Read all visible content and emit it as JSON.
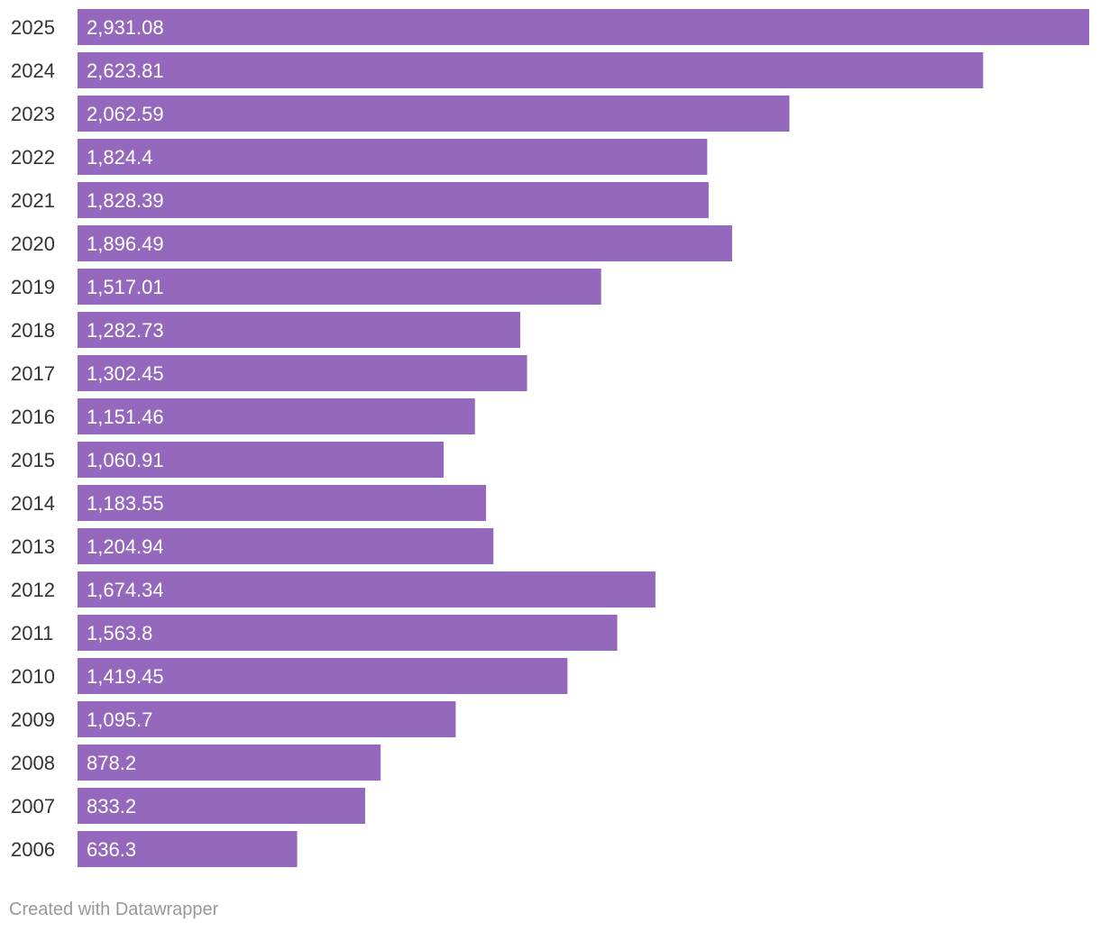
{
  "chart_data": {
    "type": "bar",
    "orientation": "horizontal",
    "categories": [
      "2025",
      "2024",
      "2023",
      "2022",
      "2021",
      "2020",
      "2019",
      "2018",
      "2017",
      "2016",
      "2015",
      "2014",
      "2013",
      "2012",
      "2011",
      "2010",
      "2009",
      "2008",
      "2007",
      "2006"
    ],
    "values": [
      2931.08,
      2623.81,
      2062.59,
      1824.4,
      1828.39,
      1896.49,
      1517.01,
      1282.73,
      1302.45,
      1151.46,
      1060.91,
      1183.55,
      1204.94,
      1674.34,
      1563.8,
      1419.45,
      1095.7,
      878.2,
      833.2,
      636.3
    ],
    "value_labels": [
      "2,931.08",
      "2,623.81",
      "2,062.59",
      "1,824.4",
      "1,828.39",
      "1,896.49",
      "1,517.01",
      "1,282.73",
      "1,302.45",
      "1,151.46",
      "1,060.91",
      "1,183.55",
      "1,204.94",
      "1,674.34",
      "1,563.8",
      "1,419.45",
      "1,095.7",
      "878.2",
      "833.2",
      "636.3"
    ],
    "title": "",
    "xlabel": "",
    "ylabel": "",
    "xlim": [
      0,
      2931.08
    ],
    "grid": false,
    "legend": "none",
    "bar_color": "#9368bd",
    "label_color": "#ffffff",
    "category_label_color": "#333333"
  },
  "footer": {
    "credit": "Created with Datawrapper"
  }
}
